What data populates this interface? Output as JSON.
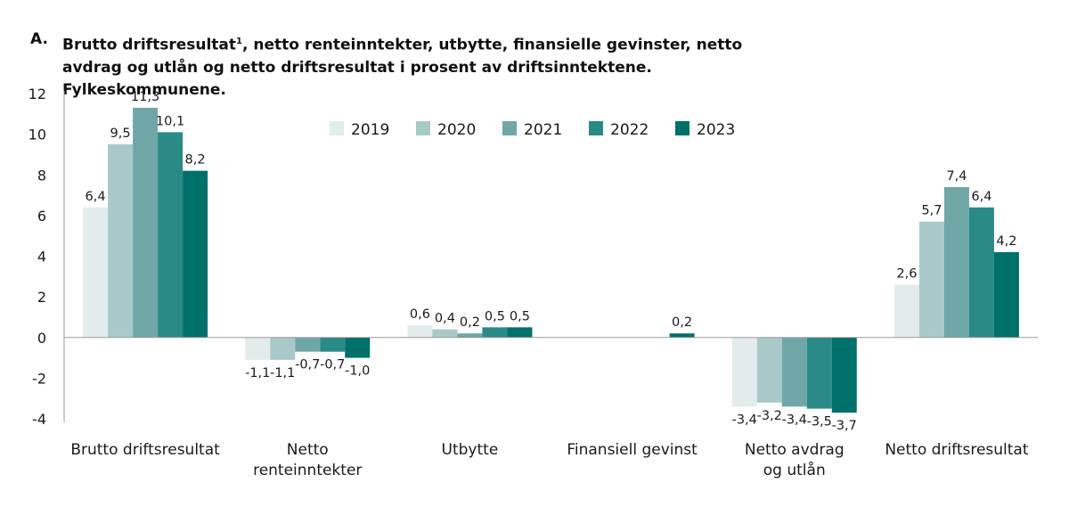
{
  "chart_data": {
    "type": "bar",
    "panel_letter": "A.",
    "title": "Brutto driftsresultat",
    "title_sup": "1",
    "title_rest": ", netto renteinntekter, utbytte, finansielle gevinster, netto avdrag og utlån og netto driftsresultat i prosent av driftsinntektene. Fylkeskommunene.",
    "categories": [
      [
        "Brutto driftsresultat"
      ],
      [
        "Netto",
        "renteinntekter"
      ],
      [
        "Utbytte"
      ],
      [
        "Finansiell gevinst"
      ],
      [
        "Netto avdrag",
        "og utlån"
      ],
      [
        "Netto driftsresultat"
      ]
    ],
    "series": [
      {
        "name": "2019",
        "color": "#e2eceb",
        "values": [
          6.4,
          -1.1,
          0.6,
          0.0,
          -3.4,
          2.6
        ],
        "labels": [
          "6,4",
          "-1,1",
          "0,6",
          "",
          "-3,4",
          "2,6"
        ]
      },
      {
        "name": "2020",
        "color": "#a8c9c7",
        "values": [
          9.5,
          -1.1,
          0.4,
          0.0,
          -3.2,
          5.7
        ],
        "labels": [
          "9,5",
          "-1,1",
          "0,4",
          "",
          "-3,2",
          "5,7"
        ]
      },
      {
        "name": "2021",
        "color": "#6fa7a7",
        "values": [
          11.3,
          -0.7,
          0.2,
          0.0,
          -3.4,
          7.4
        ],
        "labels": [
          "11,3",
          "-0,7",
          "0,2",
          "",
          "-3,4",
          "7,4"
        ]
      },
      {
        "name": "2022",
        "color": "#2a8a85",
        "values": [
          10.1,
          -0.7,
          0.5,
          0.0,
          -3.5,
          6.4
        ],
        "labels": [
          "10,1",
          "-0,7",
          "0,5",
          "",
          "-3,5",
          "6,4"
        ]
      },
      {
        "name": "2023",
        "color": "#00706a",
        "values": [
          8.2,
          -1.0,
          0.5,
          0.2,
          -3.7,
          4.2
        ],
        "labels": [
          "8,2",
          "-1,0",
          "0,5",
          "0,2",
          "-3,7",
          "4,2"
        ]
      }
    ],
    "yticks": [
      "12",
      "10",
      "8",
      "6",
      "4",
      "2",
      "0",
      "-2",
      "-4"
    ],
    "ylim": [
      -4,
      12
    ],
    "xlabel": "",
    "ylabel": "",
    "grid": false,
    "legend": "top-center"
  }
}
